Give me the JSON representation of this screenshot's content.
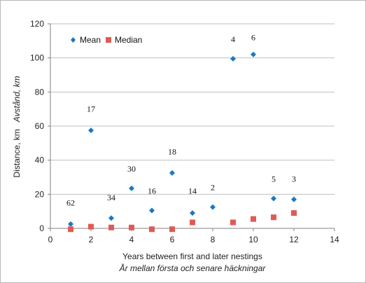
{
  "chart_data": {
    "type": "scatter",
    "xlim": [
      0,
      14
    ],
    "ylim": [
      0,
      120
    ],
    "x_ticks": [
      0,
      2,
      4,
      6,
      8,
      10,
      12,
      14
    ],
    "y_ticks": [
      0,
      20,
      40,
      60,
      80,
      100,
      120
    ],
    "xlabel": "Years between first and later nestings",
    "xlabel_secondary": "År mellan första och senare häckningar",
    "ylabel": "Distance, km",
    "ylabel_secondary": "Avstånd, km",
    "legend_position": "top-left",
    "grid": "horizontal",
    "series": [
      {
        "name": "Mean",
        "marker": "diamond",
        "color": "#1a78c2",
        "points": [
          {
            "x": 1,
            "y": 2.5
          },
          {
            "x": 2,
            "y": 57.5
          },
          {
            "x": 3,
            "y": 6
          },
          {
            "x": 4,
            "y": 23.5
          },
          {
            "x": 5,
            "y": 10.5
          },
          {
            "x": 6,
            "y": 32.5
          },
          {
            "x": 7,
            "y": 9
          },
          {
            "x": 8,
            "y": 12.5
          },
          {
            "x": 9,
            "y": 99.5
          },
          {
            "x": 10,
            "y": 102
          },
          {
            "x": 11,
            "y": 17.5
          },
          {
            "x": 12,
            "y": 17
          }
        ]
      },
      {
        "name": "Median",
        "marker": "square",
        "color": "#e05a55",
        "points": [
          {
            "x": 1,
            "y": -0.5
          },
          {
            "x": 2,
            "y": 1
          },
          {
            "x": 3,
            "y": 0.5
          },
          {
            "x": 4,
            "y": 0.5
          },
          {
            "x": 5,
            "y": -0.5
          },
          {
            "x": 6,
            "y": -0.5
          },
          {
            "x": 7,
            "y": 3.5
          },
          {
            "x": 8,
            "y": null
          },
          {
            "x": 9,
            "y": 3.5
          },
          {
            "x": 10,
            "y": 5.5
          },
          {
            "x": 11,
            "y": 6.5
          },
          {
            "x": 12,
            "y": 9
          }
        ]
      }
    ],
    "annotations": [
      {
        "text": "62",
        "x": 1,
        "y": 15
      },
      {
        "text": "17",
        "x": 2,
        "y": 70
      },
      {
        "text": "34",
        "x": 3,
        "y": 18
      },
      {
        "text": "30",
        "x": 4,
        "y": 35
      },
      {
        "text": "16",
        "x": 5,
        "y": 22
      },
      {
        "text": "18",
        "x": 6,
        "y": 45
      },
      {
        "text": "14",
        "x": 7,
        "y": 22
      },
      {
        "text": "2",
        "x": 8,
        "y": 24
      },
      {
        "text": "4",
        "x": 9,
        "y": 111
      },
      {
        "text": "6",
        "x": 10,
        "y": 112
      },
      {
        "text": "5",
        "x": 11,
        "y": 29
      },
      {
        "text": "3",
        "x": 12,
        "y": 29
      }
    ]
  }
}
